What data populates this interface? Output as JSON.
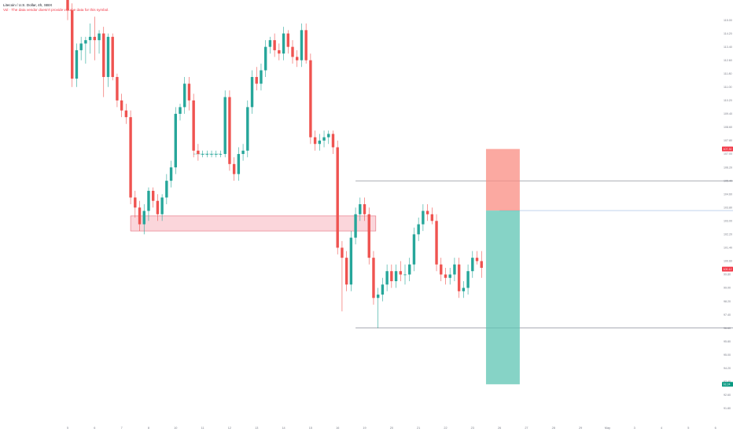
{
  "header": {
    "symbol_line": "Litecoin / U.S. Dollar, 4h, SBIX",
    "volume_note": "Vol · The data vendor doesn't provide volume data for this symbol."
  },
  "chart_data": {
    "type": "candlestick",
    "title": "Litecoin / U.S. Dollar, 4h, SBIX",
    "xlabel": "",
    "ylabel": "",
    "grid": false,
    "ylim": [
      91.0,
      116.2
    ],
    "x_tick_labels": [
      {
        "label": "5",
        "x": 0
      },
      {
        "label": "6",
        "x": 6
      },
      {
        "label": "7",
        "x": 12
      },
      {
        "label": "8",
        "x": 18
      },
      {
        "label": "10",
        "x": 24
      },
      {
        "label": "11",
        "x": 30
      },
      {
        "label": "12",
        "x": 36
      },
      {
        "label": "13",
        "x": 42
      },
      {
        "label": "14",
        "x": 48
      },
      {
        "label": "15",
        "x": 54
      },
      {
        "label": "16",
        "x": 60
      },
      {
        "label": "19",
        "x": 66
      },
      {
        "label": "20",
        "x": 72
      },
      {
        "label": "21",
        "x": 78
      },
      {
        "label": "22",
        "x": 84
      },
      {
        "label": "23",
        "x": 90
      },
      {
        "label": "26",
        "x": 96
      },
      {
        "label": "27",
        "x": 102
      },
      {
        "label": "28",
        "x": 108
      },
      {
        "label": "29",
        "x": 114
      },
      {
        "label": "May",
        "x": 120
      },
      {
        "label": "3",
        "x": 126
      },
      {
        "label": "4",
        "x": 132
      },
      {
        "label": "5",
        "x": 138
      },
      {
        "label": "6",
        "x": 144
      },
      {
        "label": "9",
        "x": 150
      },
      {
        "label": "10",
        "x": 156
      }
    ],
    "y_tick_labels": [
      "115.00",
      "114.20",
      "113.40",
      "112.60",
      "111.80",
      "111.00",
      "110.20",
      "109.40",
      "108.60",
      "107.80",
      "107.00",
      "106.20",
      "105.40",
      "104.60",
      "103.80",
      "103.00",
      "102.20",
      "101.40",
      "100.60",
      "99.80",
      "99.00",
      "98.20",
      "97.40",
      "96.60",
      "95.80",
      "95.00",
      "94.20",
      "93.40",
      "92.60",
      "91.80",
      "91.00"
    ],
    "price_badges": [
      {
        "label": "107.30",
        "value": 107.3,
        "color": "#f23645"
      },
      {
        "label": "100.12",
        "value": 100.12,
        "color": "#f23645"
      },
      {
        "label": "93.24",
        "value": 93.24,
        "color": "#089981"
      }
    ],
    "candles": [
      {
        "x": 0,
        "o": 117.0,
        "h": 118.0,
        "l": 115.0,
        "c": 115.6
      },
      {
        "x": 1,
        "o": 115.6,
        "h": 116.0,
        "l": 111.0,
        "c": 111.5
      },
      {
        "x": 2,
        "o": 111.5,
        "h": 113.6,
        "l": 111.0,
        "c": 113.2
      },
      {
        "x": 3,
        "o": 113.2,
        "h": 114.0,
        "l": 112.6,
        "c": 113.6
      },
      {
        "x": 4,
        "o": 113.6,
        "h": 114.0,
        "l": 112.4,
        "c": 113.8
      },
      {
        "x": 5,
        "o": 113.8,
        "h": 114.8,
        "l": 113.0,
        "c": 114.0
      },
      {
        "x": 6,
        "o": 114.0,
        "h": 115.2,
        "l": 112.6,
        "c": 113.8
      },
      {
        "x": 7,
        "o": 113.8,
        "h": 114.4,
        "l": 113.0,
        "c": 114.2
      },
      {
        "x": 8,
        "o": 114.2,
        "h": 114.6,
        "l": 110.4,
        "c": 111.6
      },
      {
        "x": 9,
        "o": 111.6,
        "h": 114.2,
        "l": 111.0,
        "c": 114.0
      },
      {
        "x": 10,
        "o": 114.0,
        "h": 114.2,
        "l": 111.4,
        "c": 111.6
      },
      {
        "x": 11,
        "o": 111.6,
        "h": 111.8,
        "l": 109.8,
        "c": 110.2
      },
      {
        "x": 12,
        "o": 110.2,
        "h": 110.6,
        "l": 109.2,
        "c": 109.6
      },
      {
        "x": 13,
        "o": 109.6,
        "h": 110.0,
        "l": 108.8,
        "c": 109.2
      },
      {
        "x": 14,
        "o": 109.2,
        "h": 109.6,
        "l": 104.0,
        "c": 104.4
      },
      {
        "x": 15,
        "o": 104.4,
        "h": 104.8,
        "l": 103.2,
        "c": 103.8
      },
      {
        "x": 16,
        "o": 103.8,
        "h": 104.2,
        "l": 102.4,
        "c": 102.8
      },
      {
        "x": 17,
        "o": 102.8,
        "h": 104.0,
        "l": 102.2,
        "c": 103.6
      },
      {
        "x": 18,
        "o": 103.6,
        "h": 105.0,
        "l": 103.0,
        "c": 104.8
      },
      {
        "x": 19,
        "o": 104.8,
        "h": 105.0,
        "l": 103.8,
        "c": 104.2
      },
      {
        "x": 20,
        "o": 104.2,
        "h": 104.6,
        "l": 103.0,
        "c": 103.4
      },
      {
        "x": 21,
        "o": 103.4,
        "h": 104.6,
        "l": 103.0,
        "c": 104.4
      },
      {
        "x": 22,
        "o": 104.4,
        "h": 105.8,
        "l": 104.0,
        "c": 105.4
      },
      {
        "x": 23,
        "o": 105.4,
        "h": 106.6,
        "l": 105.0,
        "c": 106.2
      },
      {
        "x": 24,
        "o": 106.2,
        "h": 109.8,
        "l": 105.8,
        "c": 109.4
      },
      {
        "x": 25,
        "o": 109.4,
        "h": 110.0,
        "l": 109.0,
        "c": 109.8
      },
      {
        "x": 26,
        "o": 109.8,
        "h": 111.6,
        "l": 109.4,
        "c": 111.2
      },
      {
        "x": 27,
        "o": 111.2,
        "h": 111.6,
        "l": 109.6,
        "c": 110.2
      },
      {
        "x": 28,
        "o": 110.2,
        "h": 110.6,
        "l": 106.8,
        "c": 107.2
      },
      {
        "x": 29,
        "o": 107.2,
        "h": 107.6,
        "l": 106.6,
        "c": 107.0
      },
      {
        "x": 30,
        "o": 107.0,
        "h": 107.2,
        "l": 106.8,
        "c": 107.0
      },
      {
        "x": 31,
        "o": 107.0,
        "h": 107.2,
        "l": 106.8,
        "c": 107.0
      },
      {
        "x": 32,
        "o": 107.0,
        "h": 107.2,
        "l": 106.8,
        "c": 107.0
      },
      {
        "x": 33,
        "o": 107.0,
        "h": 107.2,
        "l": 106.8,
        "c": 107.0
      },
      {
        "x": 34,
        "o": 107.0,
        "h": 107.2,
        "l": 106.8,
        "c": 107.0
      },
      {
        "x": 35,
        "o": 107.0,
        "h": 110.8,
        "l": 106.8,
        "c": 110.4
      },
      {
        "x": 36,
        "o": 110.4,
        "h": 110.8,
        "l": 106.0,
        "c": 106.4
      },
      {
        "x": 37,
        "o": 106.4,
        "h": 106.8,
        "l": 105.4,
        "c": 105.8
      },
      {
        "x": 38,
        "o": 105.8,
        "h": 107.4,
        "l": 105.4,
        "c": 107.0
      },
      {
        "x": 39,
        "o": 107.0,
        "h": 107.6,
        "l": 106.6,
        "c": 107.2
      },
      {
        "x": 40,
        "o": 107.2,
        "h": 110.2,
        "l": 106.8,
        "c": 109.8
      },
      {
        "x": 41,
        "o": 109.8,
        "h": 112.0,
        "l": 109.4,
        "c": 111.6
      },
      {
        "x": 42,
        "o": 111.6,
        "h": 112.2,
        "l": 110.8,
        "c": 111.2
      },
      {
        "x": 43,
        "o": 111.2,
        "h": 112.4,
        "l": 110.8,
        "c": 112.0
      },
      {
        "x": 44,
        "o": 112.0,
        "h": 113.8,
        "l": 111.6,
        "c": 113.4
      },
      {
        "x": 45,
        "o": 113.4,
        "h": 114.0,
        "l": 113.0,
        "c": 113.8
      },
      {
        "x": 46,
        "o": 113.8,
        "h": 114.2,
        "l": 112.8,
        "c": 113.2
      },
      {
        "x": 47,
        "o": 113.2,
        "h": 113.6,
        "l": 112.6,
        "c": 113.0
      },
      {
        "x": 48,
        "o": 113.0,
        "h": 114.6,
        "l": 112.6,
        "c": 114.2
      },
      {
        "x": 49,
        "o": 114.2,
        "h": 114.4,
        "l": 113.0,
        "c": 113.4
      },
      {
        "x": 50,
        "o": 113.4,
        "h": 113.8,
        "l": 112.4,
        "c": 112.8
      },
      {
        "x": 51,
        "o": 112.8,
        "h": 113.2,
        "l": 112.2,
        "c": 112.6
      },
      {
        "x": 52,
        "o": 112.6,
        "h": 114.8,
        "l": 112.2,
        "c": 114.4
      },
      {
        "x": 53,
        "o": 114.4,
        "h": 114.8,
        "l": 112.4,
        "c": 112.6
      },
      {
        "x": 54,
        "o": 112.6,
        "h": 113.0,
        "l": 107.6,
        "c": 108.0
      },
      {
        "x": 55,
        "o": 108.0,
        "h": 108.4,
        "l": 107.2,
        "c": 107.6
      },
      {
        "x": 56,
        "o": 107.6,
        "h": 108.2,
        "l": 107.2,
        "c": 107.8
      },
      {
        "x": 57,
        "o": 107.8,
        "h": 108.4,
        "l": 107.4,
        "c": 108.0
      },
      {
        "x": 58,
        "o": 108.0,
        "h": 108.4,
        "l": 107.6,
        "c": 108.2
      },
      {
        "x": 59,
        "o": 108.2,
        "h": 108.4,
        "l": 107.0,
        "c": 107.4
      },
      {
        "x": 60,
        "o": 107.4,
        "h": 107.8,
        "l": 101.0,
        "c": 101.4
      },
      {
        "x": 61,
        "o": 101.4,
        "h": 101.8,
        "l": 97.6,
        "c": 100.8
      },
      {
        "x": 62,
        "o": 100.8,
        "h": 101.2,
        "l": 98.8,
        "c": 99.2
      },
      {
        "x": 63,
        "o": 99.2,
        "h": 102.4,
        "l": 98.8,
        "c": 102.0
      },
      {
        "x": 64,
        "o": 102.0,
        "h": 103.8,
        "l": 101.6,
        "c": 103.4
      },
      {
        "x": 65,
        "o": 103.4,
        "h": 104.4,
        "l": 103.0,
        "c": 104.0
      },
      {
        "x": 66,
        "o": 104.0,
        "h": 104.4,
        "l": 103.0,
        "c": 103.4
      },
      {
        "x": 67,
        "o": 103.4,
        "h": 103.8,
        "l": 100.4,
        "c": 100.8
      },
      {
        "x": 68,
        "o": 100.8,
        "h": 101.2,
        "l": 98.0,
        "c": 98.4
      },
      {
        "x": 69,
        "o": 98.4,
        "h": 99.0,
        "l": 96.6,
        "c": 98.6
      },
      {
        "x": 70,
        "o": 98.6,
        "h": 99.6,
        "l": 98.2,
        "c": 99.2
      },
      {
        "x": 71,
        "o": 99.2,
        "h": 100.4,
        "l": 98.8,
        "c": 100.0
      },
      {
        "x": 72,
        "o": 100.0,
        "h": 100.4,
        "l": 99.0,
        "c": 99.4
      },
      {
        "x": 73,
        "o": 99.4,
        "h": 100.4,
        "l": 99.0,
        "c": 100.0
      },
      {
        "x": 74,
        "o": 100.0,
        "h": 100.6,
        "l": 99.4,
        "c": 99.8
      },
      {
        "x": 75,
        "o": 99.8,
        "h": 100.4,
        "l": 99.2,
        "c": 99.8
      },
      {
        "x": 76,
        "o": 99.8,
        "h": 100.8,
        "l": 99.4,
        "c": 100.4
      },
      {
        "x": 77,
        "o": 100.4,
        "h": 102.6,
        "l": 100.0,
        "c": 102.2
      },
      {
        "x": 78,
        "o": 102.2,
        "h": 103.2,
        "l": 101.8,
        "c": 102.8
      },
      {
        "x": 79,
        "o": 102.8,
        "h": 104.0,
        "l": 102.4,
        "c": 103.6
      },
      {
        "x": 80,
        "o": 103.6,
        "h": 104.0,
        "l": 103.0,
        "c": 103.4
      },
      {
        "x": 81,
        "o": 103.4,
        "h": 103.8,
        "l": 102.8,
        "c": 103.0
      },
      {
        "x": 82,
        "o": 103.0,
        "h": 103.4,
        "l": 100.0,
        "c": 100.4
      },
      {
        "x": 83,
        "o": 100.4,
        "h": 100.8,
        "l": 99.4,
        "c": 99.8
      },
      {
        "x": 84,
        "o": 99.8,
        "h": 100.2,
        "l": 99.2,
        "c": 99.6
      },
      {
        "x": 85,
        "o": 99.6,
        "h": 100.2,
        "l": 99.2,
        "c": 99.8
      },
      {
        "x": 86,
        "o": 99.8,
        "h": 100.8,
        "l": 99.4,
        "c": 100.4
      },
      {
        "x": 87,
        "o": 100.4,
        "h": 100.8,
        "l": 98.4,
        "c": 98.8
      },
      {
        "x": 88,
        "o": 98.8,
        "h": 99.4,
        "l": 98.4,
        "c": 99.0
      },
      {
        "x": 89,
        "o": 99.0,
        "h": 100.4,
        "l": 98.6,
        "c": 100.0
      },
      {
        "x": 90,
        "o": 100.0,
        "h": 101.2,
        "l": 99.6,
        "c": 100.8
      },
      {
        "x": 91,
        "o": 100.8,
        "h": 101.2,
        "l": 100.4,
        "c": 100.6
      },
      {
        "x": 92,
        "o": 100.6,
        "h": 101.2,
        "l": 99.6,
        "c": 100.2
      }
    ],
    "zones": [
      {
        "kind": "supply-demand",
        "x0": 14,
        "x1": 68.5,
        "y0": 102.4,
        "y1": 103.3,
        "color": "#f7b5bd",
        "stroke": "#e36a78"
      }
    ],
    "levels": [
      {
        "kind": "high",
        "x0": 64,
        "x1": 158,
        "value": 105.4,
        "label": "105.40",
        "color": "#787b86"
      },
      {
        "kind": "low",
        "x0": 64,
        "x1": 158,
        "value": 96.6,
        "label": "96.60",
        "color": "#787b86"
      },
      {
        "kind": "entry",
        "x0": 96,
        "x1": 158,
        "value": 103.62,
        "label": "103.62",
        "color": "#9bb9e0"
      }
    ],
    "position": {
      "kind": "short",
      "x0": 93,
      "x1": 100.5,
      "stop": 107.3,
      "entry": 103.62,
      "target": 93.24,
      "risk_color": "#fa8c82",
      "reward_color": "#5ec4b3"
    },
    "consolidation": {
      "x0": 28,
      "x1": 34,
      "value": 107.0,
      "color": "#26a69a"
    },
    "colors": {
      "up": "#26a69a",
      "down": "#ef5350"
    }
  }
}
